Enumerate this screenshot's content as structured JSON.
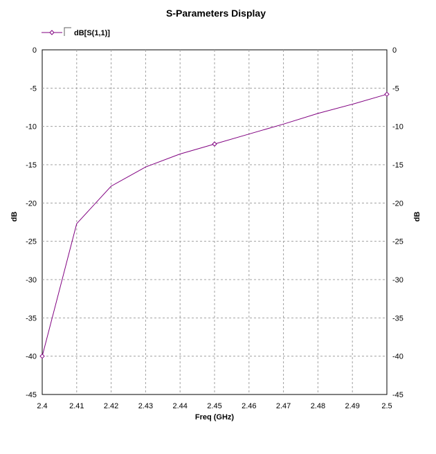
{
  "chart_data": {
    "type": "line",
    "title": "S-Parameters Display",
    "xlabel": "Freq (GHz)",
    "ylabel": "dB",
    "ylabel_right": "dB",
    "xlim": [
      2.4,
      2.5
    ],
    "ylim": [
      -45,
      0
    ],
    "x_ticks": [
      "2.4",
      "2.41",
      "2.42",
      "2.43",
      "2.44",
      "2.45",
      "2.46",
      "2.47",
      "2.48",
      "2.49",
      "2.5"
    ],
    "y_ticks": [
      "0",
      "-5",
      "-10",
      "-15",
      "-20",
      "-25",
      "-30",
      "-35",
      "-40",
      "-45"
    ],
    "grid": true,
    "legend_position": "top-left",
    "series": [
      {
        "name": "dB[S(1,1)]",
        "color": "#800080",
        "marker": "diamond",
        "x": [
          2.4,
          2.41,
          2.42,
          2.43,
          2.44,
          2.45,
          2.46,
          2.47,
          2.48,
          2.49,
          2.5
        ],
        "y": [
          -40.0,
          -22.7,
          -17.8,
          -15.3,
          -13.6,
          -12.3,
          -11.0,
          -9.7,
          -8.3,
          -7.1,
          -5.8
        ],
        "marker_x": [
          2.4,
          2.45,
          2.5
        ]
      }
    ]
  }
}
